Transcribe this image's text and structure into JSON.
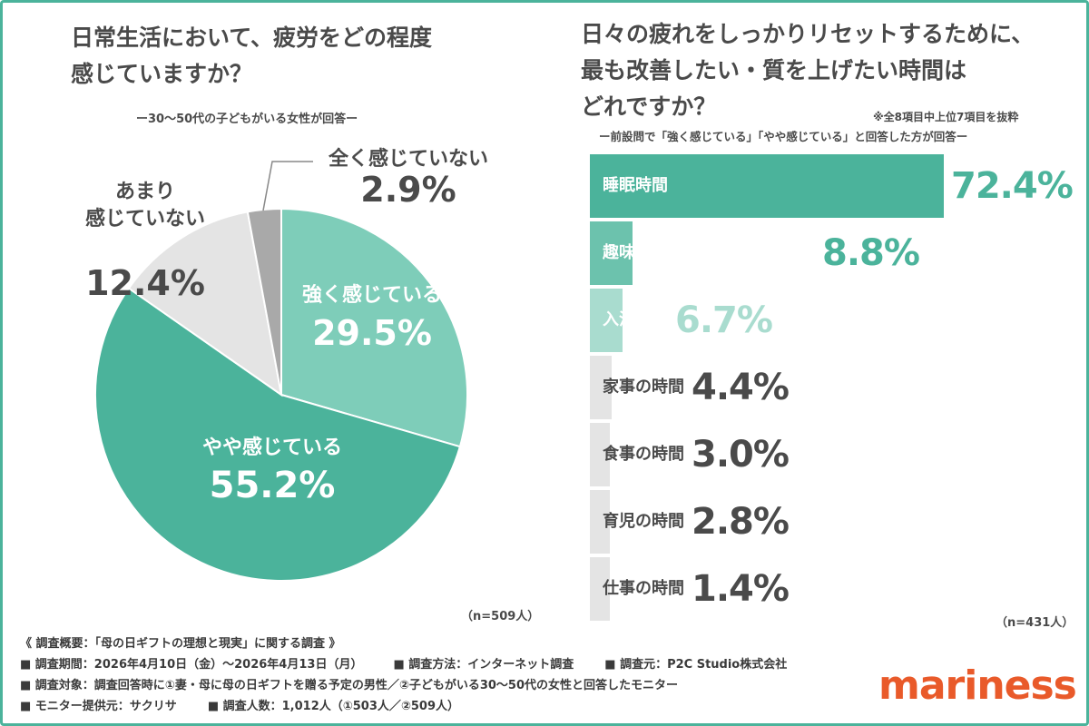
{
  "left": {
    "title_line1": "日常生活において、疲労をどの程度",
    "title_line2": "感じていますか？",
    "subtitle": "ー30～50代の子どもがいる女性が回答ー",
    "n_label": "（n=509人）"
  },
  "right": {
    "title_line1": "日々の疲れをしっかりリセットするために、",
    "title_line2": "最も改善したい・質を上げたい時間は",
    "title_line3": "どれですか？",
    "note": "※全8項目中上位7項目を抜粋",
    "subtitle": "ー前設問で「強く感じている」「やや感じている」と回答した方が回答ー",
    "n_label": "（n=431人）"
  },
  "chart_data": [
    {
      "type": "pie",
      "slices": [
        {
          "name": "強く感じている",
          "label_lines": [
            "強く感じている"
          ],
          "value": 29.5,
          "display": "29.5%",
          "color": "#7ecdb9",
          "text_color": "#ffffff"
        },
        {
          "name": "やや感じている",
          "label_lines": [
            "やや感じている"
          ],
          "value": 55.2,
          "display": "55.2%",
          "color": "#4bb39b",
          "text_color": "#ffffff"
        },
        {
          "name": "あまり感じていない",
          "label_lines": [
            "あまり",
            "感じていない"
          ],
          "value": 12.4,
          "display": "12.4%",
          "color": "#e4e4e4",
          "text_color": "#4a4a4a"
        },
        {
          "name": "全く感じていない",
          "label_lines": [
            "全く感じていない"
          ],
          "value": 2.9,
          "display": "2.9%",
          "color": "#a9a9a9",
          "text_color": "#4a4a4a"
        }
      ]
    },
    {
      "type": "bar",
      "orientation": "horizontal",
      "xlim": [
        0,
        72.4
      ],
      "categories": [
        "睡眠時間",
        "趣味や自分のための自由時間",
        "入浴時間",
        "家事の時間",
        "食事の時間",
        "育児の時間",
        "仕事の時間"
      ],
      "values": [
        72.4,
        8.8,
        6.7,
        4.4,
        3.0,
        2.8,
        1.4
      ],
      "display": [
        "72.4%",
        "8.8%",
        "6.7%",
        "4.4%",
        "3.0%",
        "2.8%",
        "1.4%"
      ],
      "colors": [
        "#4bb39b",
        "#6cc2ad",
        "#a9dccf",
        "#e4e4e4",
        "#e4e4e4",
        "#e4e4e4",
        "#e4e4e4"
      ],
      "label_colors": [
        "#ffffff",
        "#ffffff",
        "#ffffff",
        "#4a4a4a",
        "#4a4a4a",
        "#4a4a4a",
        "#4a4a4a"
      ],
      "value_colors": [
        "#4bb39b",
        "#4bb39b",
        "#a9dccf",
        "#4a4a4a",
        "#4a4a4a",
        "#4a4a4a",
        "#4a4a4a"
      ]
    }
  ],
  "footer": {
    "line1": "《 調査概要：「母の日ギフトの理想と現実」に関する調査 》",
    "period": "■ 調査期間：2026年4月10日（金）～2026年4月13日（月）",
    "method": "■ 調査方法：インターネット調査",
    "source": "■ 調査元：P2C Studio株式会社",
    "target": "■ 調査対象：調査回答時に①妻・母に母の日ギフトを贈る予定の男性／②子どもがいる30～50代の女性と回答したモニター",
    "provider": "■ モニター提供元：サクリサ",
    "count": "■ 調査人数：1,012人（①503人／②509人）"
  },
  "logo": "mariness"
}
